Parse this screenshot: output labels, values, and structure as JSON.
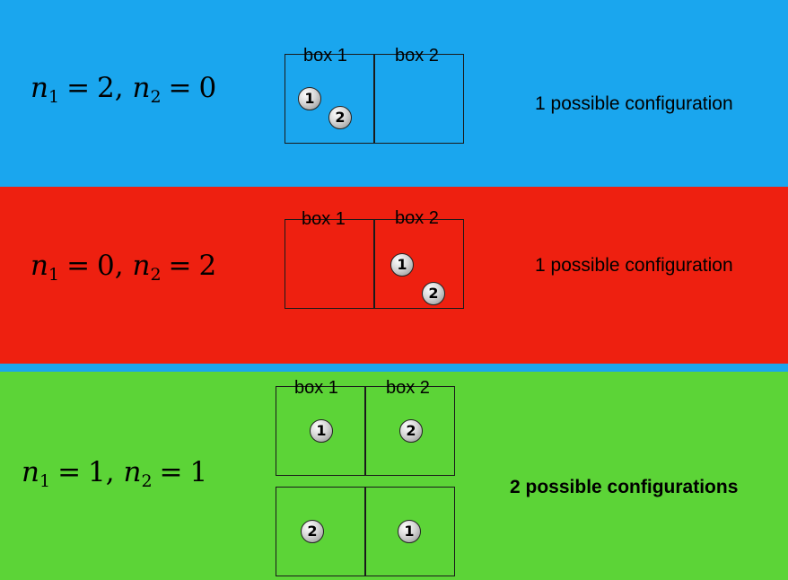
{
  "rows": [
    {
      "equation": {
        "n1": "n",
        "n1_sub": "1",
        "eq1": "=",
        "n1_value": "2,",
        "n2": "n",
        "n2_sub": "2",
        "eq2": "=",
        "n2_value": "0"
      },
      "caption": "1 possible configuration",
      "box_labels": [
        "box 1",
        "box 2"
      ],
      "balls": [
        "1",
        "2"
      ]
    },
    {
      "equation": {
        "n1": "n",
        "n1_sub": "1",
        "eq1": "=",
        "n1_value": "0,",
        "n2": "n",
        "n2_sub": "2",
        "eq2": "=",
        "n2_value": "2"
      },
      "caption": "1 possible configuration",
      "box_labels": [
        "box 1",
        "box 2"
      ],
      "balls": [
        "1",
        "2"
      ]
    },
    {
      "equation": {
        "n1": "n",
        "n1_sub": "1",
        "eq1": "=",
        "n1_value": "1,",
        "n2": "n",
        "n2_sub": "2",
        "eq2": "=",
        "n2_value": "1"
      },
      "caption": "2 possible configurations",
      "box_labels": [
        "box 1",
        "box 2"
      ],
      "balls_config_a": [
        "1",
        "2"
      ],
      "balls_config_b": [
        "2",
        "1"
      ]
    }
  ],
  "colors": {
    "top_panel": "#1aa6ee",
    "middle_panel": "#ee2010",
    "bottom_panel": "#5cd437"
  }
}
